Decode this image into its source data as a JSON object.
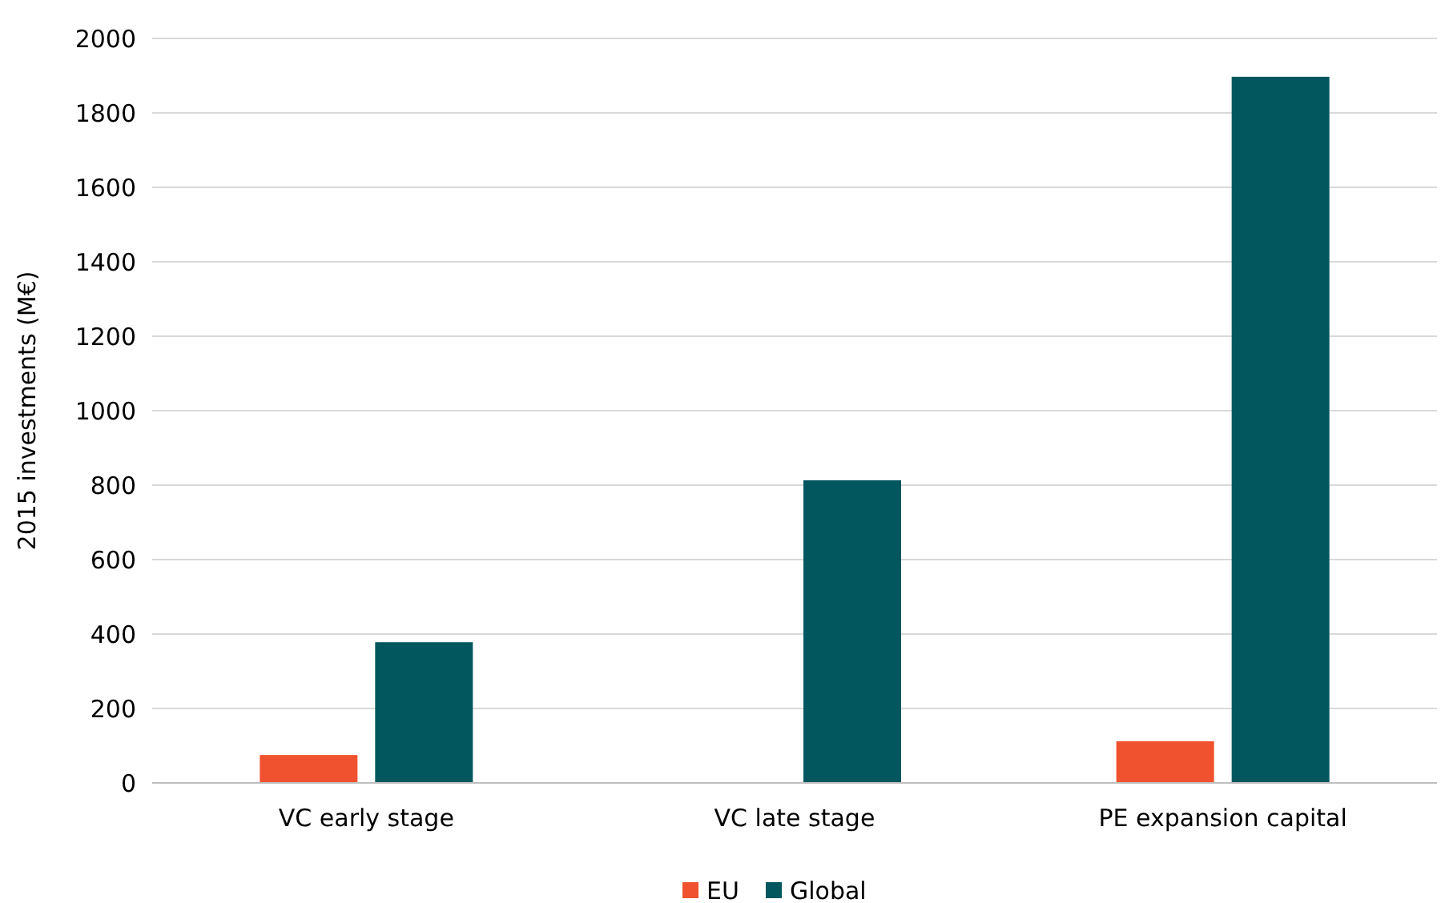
{
  "chart_data": {
    "type": "bar",
    "ylabel": "2015 investments (M€)",
    "categories": [
      "VC early stage",
      "VC late stage",
      "PE expansion capital"
    ],
    "series": [
      {
        "name": "EU",
        "color": "#f0522f",
        "values": [
          75,
          0,
          112
        ]
      },
      {
        "name": "Global",
        "color": "#02575f",
        "values": [
          378,
          813,
          1897
        ]
      }
    ],
    "ylim": [
      0,
      2000
    ],
    "yticks": [
      0,
      200,
      400,
      600,
      800,
      1000,
      1200,
      1400,
      1600,
      1800,
      2000
    ],
    "grid": "y",
    "legend": "bottom"
  }
}
